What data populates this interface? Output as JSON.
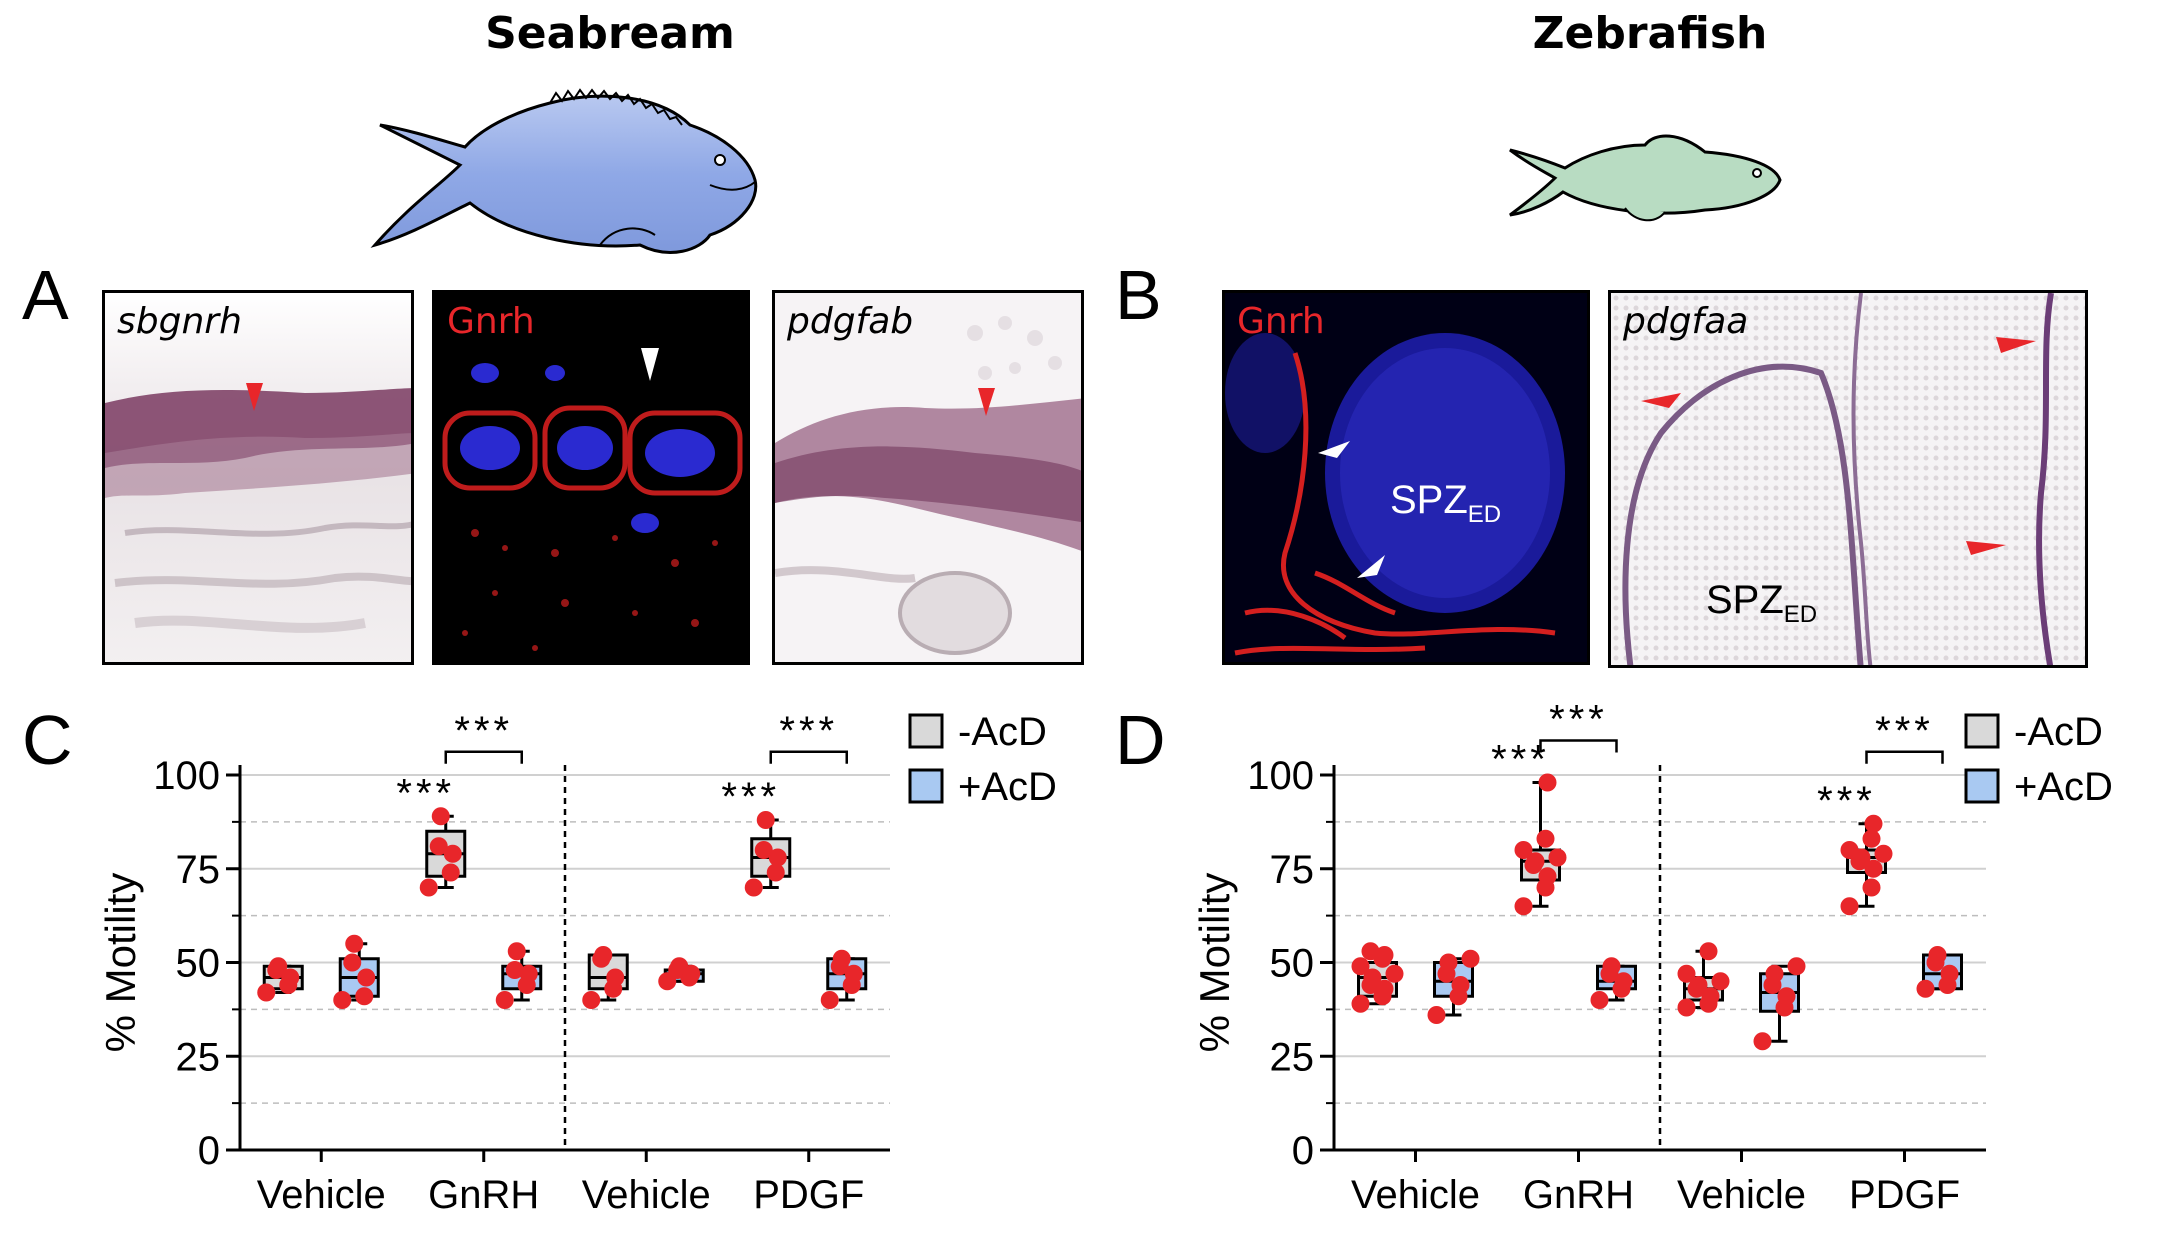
{
  "species": {
    "left": "Seabream",
    "right": "Zebrafish"
  },
  "panel_letters": {
    "a": "A",
    "b": "B",
    "c": "C",
    "d": "D"
  },
  "micrographs": {
    "a1": "sbgnrh",
    "a2": "Gnrh",
    "a3": "pdgfab",
    "b1": "Gnrh",
    "b2": "pdgfaa",
    "spz_main": "SPZ",
    "spz_sub": "ED"
  },
  "colors": {
    "neg_box": "#d9d9d9",
    "pos_box": "#a9c9f2",
    "dots": "#e8262a",
    "seabream_fish": "#8fa8e6",
    "zebrafish_fish": "#b8dcc2",
    "arrow_red": "#e8262a",
    "arrow_white": "#ffffff"
  },
  "legend": {
    "neg": "-AcD",
    "pos": "+AcD"
  },
  "sig": "***",
  "chart_data": [
    {
      "panel": "C",
      "type": "box",
      "ylabel": "% Motility",
      "ylim": [
        0,
        100
      ],
      "yticks": [
        0,
        25,
        50,
        75,
        100
      ],
      "categories": [
        "Vehicle",
        "GnRH",
        "Vehicle",
        "PDGF"
      ],
      "series": [
        {
          "name": "-AcD",
          "boxes": [
            {
              "category": 0,
              "min": 42,
              "q1": 43,
              "median": 46,
              "q3": 49,
              "max": 49,
              "points": [
                42,
                44,
                46,
                48,
                49
              ]
            },
            {
              "category": 1,
              "min": 70,
              "q1": 73,
              "median": 79,
              "q3": 85,
              "max": 89,
              "points": [
                70,
                74,
                79,
                81,
                89
              ]
            },
            {
              "category": 2,
              "min": 40,
              "q1": 43,
              "median": 46,
              "q3": 52,
              "max": 52,
              "points": [
                40,
                43,
                46,
                51,
                52
              ]
            },
            {
              "category": 3,
              "min": 70,
              "q1": 73,
              "median": 78,
              "q3": 83,
              "max": 88,
              "points": [
                70,
                74,
                78,
                80,
                88
              ]
            }
          ]
        },
        {
          "name": "+AcD",
          "boxes": [
            {
              "category": 0,
              "min": 40,
              "q1": 41,
              "median": 46,
              "q3": 51,
              "max": 55,
              "points": [
                40,
                41,
                46,
                50,
                55
              ]
            },
            {
              "category": 1,
              "min": 40,
              "q1": 43,
              "median": 47,
              "q3": 49,
              "max": 53,
              "points": [
                40,
                44,
                47,
                48,
                53
              ]
            },
            {
              "category": 2,
              "min": 45,
              "q1": 45,
              "median": 47,
              "q3": 48,
              "max": 49,
              "points": [
                45,
                46,
                47,
                48,
                49
              ]
            },
            {
              "category": 3,
              "min": 40,
              "q1": 43,
              "median": 47,
              "q3": 51,
              "max": 51,
              "points": [
                40,
                44,
                47,
                49,
                51
              ]
            }
          ]
        }
      ],
      "significance": [
        "GnRH",
        "PDGF"
      ],
      "grid_lines_solid": [
        25,
        50,
        75,
        100
      ],
      "grid_lines_dashed": [
        12.5,
        37.5,
        62.5,
        87.5
      ]
    },
    {
      "panel": "D",
      "type": "box",
      "ylabel": "% Motility",
      "ylim": [
        0,
        100
      ],
      "yticks": [
        0,
        25,
        50,
        75,
        100
      ],
      "categories": [
        "Vehicle",
        "GnRH",
        "Vehicle",
        "PDGF"
      ],
      "series": [
        {
          "name": "-AcD",
          "boxes": [
            {
              "category": 0,
              "min": 39,
              "q1": 41,
              "median": 46,
              "q3": 50,
              "max": 53,
              "points": [
                39,
                41,
                43,
                44,
                46,
                47,
                49,
                51,
                52,
                53
              ]
            },
            {
              "category": 1,
              "min": 65,
              "q1": 72,
              "median": 77,
              "q3": 80,
              "max": 98,
              "points": [
                65,
                70,
                73,
                76,
                77,
                78,
                80,
                83,
                98
              ]
            },
            {
              "category": 2,
              "min": 38,
              "q1": 40,
              "median": 43,
              "q3": 46,
              "max": 53,
              "points": [
                38,
                39,
                41,
                43,
                44,
                45,
                47,
                53
              ]
            },
            {
              "category": 3,
              "min": 65,
              "q1": 74,
              "median": 78,
              "q3": 80,
              "max": 87,
              "points": [
                65,
                70,
                75,
                77,
                78,
                79,
                80,
                83,
                87
              ]
            }
          ]
        },
        {
          "name": "+AcD",
          "boxes": [
            {
              "category": 0,
              "min": 36,
              "q1": 41,
              "median": 45,
              "q3": 50,
              "max": 51,
              "points": [
                36,
                41,
                44,
                47,
                50,
                51
              ]
            },
            {
              "category": 1,
              "min": 40,
              "q1": 43,
              "median": 45,
              "q3": 49,
              "max": 49,
              "points": [
                40,
                43,
                45,
                47,
                49
              ]
            },
            {
              "category": 2,
              "min": 29,
              "q1": 37,
              "median": 42,
              "q3": 47,
              "max": 49,
              "points": [
                29,
                38,
                41,
                44,
                47,
                49
              ]
            },
            {
              "category": 3,
              "min": 43,
              "q1": 43,
              "median": 47,
              "q3": 52,
              "max": 52,
              "points": [
                43,
                44,
                47,
                50,
                52
              ]
            }
          ]
        }
      ],
      "significance": [
        "GnRH",
        "PDGF"
      ],
      "grid_lines_solid": [
        25,
        50,
        75,
        100
      ],
      "grid_lines_dashed": [
        12.5,
        37.5,
        62.5,
        87.5
      ]
    }
  ]
}
